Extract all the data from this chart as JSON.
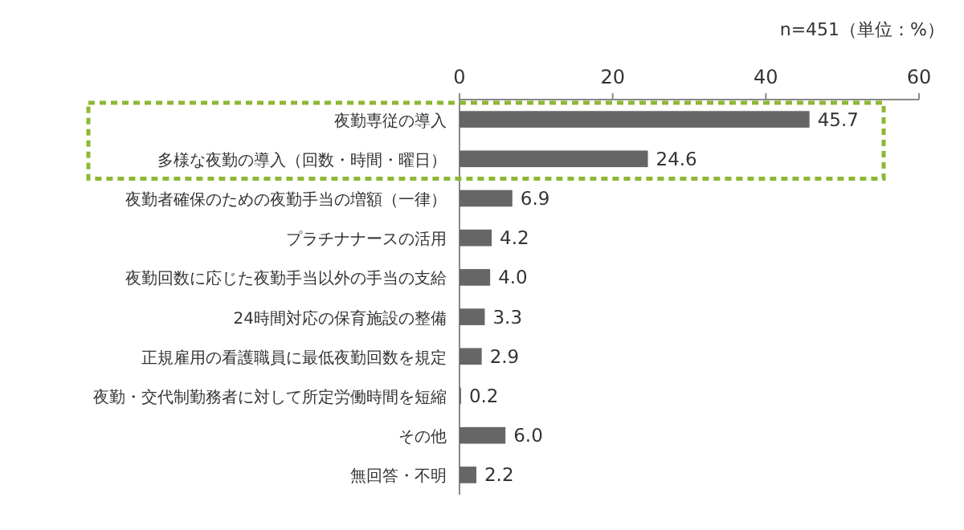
{
  "chart_data": {
    "type": "bar",
    "orientation": "horizontal",
    "categories": [
      "夜勤専従の導入",
      "多様な夜勤の導入（回数・時間・曜日）",
      "夜勤者確保のための夜勤手当の増額（一律）",
      "プラチナナースの活用",
      "夜勤回数に応じた夜勤手当以外の手当の支給",
      "24時間対応の保育施設の整備",
      "正規雇用の看護職員に最低夜勤回数を規定",
      "夜勤・交代制勤務者に対して所定労働時間を短縮",
      "その他",
      "無回答・不明"
    ],
    "values": [
      45.7,
      24.6,
      6.9,
      4.2,
      4.0,
      3.3,
      2.9,
      0.2,
      6.0,
      2.2
    ],
    "color": "#666666",
    "xlim": [
      0,
      60
    ],
    "xticks": [
      0,
      20,
      40,
      60
    ],
    "value_labels": [
      "45.7",
      "24.6",
      "6.9",
      "4.2",
      "4.0",
      "3.3",
      "2.9",
      "0.2",
      "6.0",
      "2.2"
    ],
    "grid": false,
    "annotations": [
      "n=451（単位：%）"
    ]
  }
}
